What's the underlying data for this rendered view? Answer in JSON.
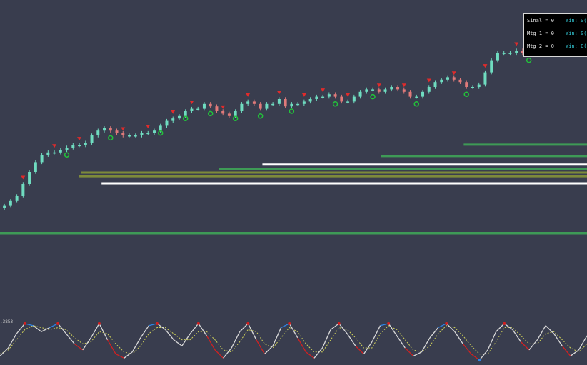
{
  "stats_panel": {
    "rows": [
      {
        "label": "Sinal = 0",
        "win": "Win: 0("
      },
      {
        "label": "Mtg 1 = 0",
        "win": "Win: 0("
      },
      {
        "label": "Mtg 2 = 0",
        "win": "Win: 0("
      }
    ]
  },
  "oscillator": {
    "level_label": ".3853"
  },
  "colors": {
    "background": "#393d4e",
    "bull_candle": "#6fdcc0",
    "bear_candle": "#e07a7a",
    "support_line": "#3e9a56",
    "white_level": "#ffffff",
    "olive_level": "#7d8a3a",
    "call_marker": "#22c33a",
    "put_marker": "#e02b2b",
    "osc_blue": "#2f84e6",
    "osc_red": "#d32020",
    "osc_white": "#d9d9d9",
    "osc_signal": "#cfd15a"
  },
  "chart_data": {
    "type": "candlestick",
    "title": "",
    "xlabel": "",
    "ylabel": "",
    "ylim": [
      0,
      1
    ],
    "price_series": [
      0.21,
      0.23,
      0.25,
      0.3,
      0.35,
      0.39,
      0.42,
      0.43,
      0.43,
      0.44,
      0.45,
      0.46,
      0.46,
      0.47,
      0.5,
      0.52,
      0.53,
      0.52,
      0.51,
      0.5,
      0.5,
      0.5,
      0.51,
      0.51,
      0.52,
      0.54,
      0.56,
      0.57,
      0.58,
      0.6,
      0.61,
      0.61,
      0.63,
      0.62,
      0.6,
      0.59,
      0.58,
      0.6,
      0.63,
      0.64,
      0.63,
      0.61,
      0.63,
      0.63,
      0.65,
      0.62,
      0.63,
      0.63,
      0.64,
      0.65,
      0.66,
      0.66,
      0.67,
      0.66,
      0.64,
      0.64,
      0.66,
      0.68,
      0.69,
      0.69,
      0.68,
      0.69,
      0.7,
      0.69,
      0.68,
      0.66,
      0.66,
      0.68,
      0.7,
      0.72,
      0.73,
      0.74,
      0.73,
      0.72,
      0.7,
      0.7,
      0.71,
      0.76,
      0.81,
      0.84,
      0.84,
      0.84,
      0.85,
      0.84,
      0.84,
      0.87,
      0.88,
      0.86,
      0.85,
      0.86,
      0.88,
      0.92,
      0.95
    ],
    "support_levels": [
      {
        "y": 0.097,
        "start": 0.0,
        "color_key": "support_line"
      },
      {
        "y": 0.303,
        "start": 0.173,
        "color_key": "white_level"
      },
      {
        "y": 0.332,
        "start": 0.135,
        "color_key": "olive_level"
      },
      {
        "y": 0.347,
        "start": 0.138,
        "color_key": "olive_level"
      },
      {
        "y": 0.363,
        "start": 0.373,
        "color_key": "support_line"
      },
      {
        "y": 0.38,
        "start": 0.447,
        "color_key": "white_level"
      },
      {
        "y": 0.415,
        "start": 0.649,
        "color_key": "support_line"
      },
      {
        "y": 0.462,
        "start": 0.79,
        "color_key": "support_line"
      }
    ],
    "put_markers": [
      3,
      8,
      12,
      19,
      23,
      27,
      30,
      35,
      39,
      44,
      48,
      51,
      55,
      60,
      64,
      68,
      72,
      77,
      82,
      85,
      88
    ],
    "call_markers": [
      10,
      17,
      25,
      29,
      33,
      37,
      41,
      46,
      53,
      59,
      66,
      74,
      84
    ],
    "oscillator": {
      "ylim": [
        0,
        1
      ],
      "k": [
        0.15,
        0.35,
        0.7,
        0.95,
        0.9,
        0.75,
        0.85,
        0.95,
        0.7,
        0.45,
        0.3,
        0.6,
        0.95,
        0.55,
        0.2,
        0.1,
        0.25,
        0.6,
        0.9,
        0.95,
        0.8,
        0.55,
        0.4,
        0.7,
        0.95,
        0.65,
        0.3,
        0.1,
        0.35,
        0.75,
        0.95,
        0.55,
        0.2,
        0.4,
        0.85,
        0.95,
        0.6,
        0.25,
        0.1,
        0.35,
        0.8,
        0.95,
        0.7,
        0.4,
        0.2,
        0.5,
        0.9,
        0.95,
        0.65,
        0.35,
        0.15,
        0.25,
        0.6,
        0.85,
        0.95,
        0.75,
        0.45,
        0.2,
        0.05,
        0.3,
        0.75,
        0.95,
        0.8,
        0.5,
        0.3,
        0.55,
        0.9,
        0.7,
        0.4,
        0.15,
        0.3,
        0.65
      ],
      "d": [
        0.2,
        0.3,
        0.55,
        0.8,
        0.9,
        0.85,
        0.8,
        0.85,
        0.8,
        0.6,
        0.45,
        0.5,
        0.75,
        0.7,
        0.45,
        0.25,
        0.2,
        0.4,
        0.7,
        0.85,
        0.85,
        0.7,
        0.55,
        0.55,
        0.75,
        0.75,
        0.55,
        0.3,
        0.25,
        0.5,
        0.8,
        0.75,
        0.45,
        0.35,
        0.6,
        0.85,
        0.75,
        0.45,
        0.25,
        0.25,
        0.55,
        0.85,
        0.8,
        0.6,
        0.35,
        0.35,
        0.7,
        0.9,
        0.8,
        0.55,
        0.3,
        0.25,
        0.4,
        0.7,
        0.9,
        0.85,
        0.65,
        0.4,
        0.2,
        0.2,
        0.5,
        0.85,
        0.85,
        0.65,
        0.45,
        0.45,
        0.7,
        0.75,
        0.55,
        0.35,
        0.25,
        0.45
      ]
    }
  }
}
